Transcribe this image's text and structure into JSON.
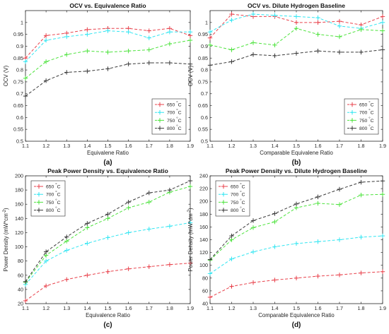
{
  "chart_data": [
    {
      "type": "line",
      "panel_label": "(a)",
      "title": "OCV vs. Equivalence Ratio",
      "xlabel": "Equivalene Ratio",
      "ylabel": "OCV (V)",
      "xlim": [
        1.1,
        1.9
      ],
      "ylim": [
        0.5,
        1.05
      ],
      "xticks": [
        "1.1",
        "1.2",
        "1.3",
        "1.4",
        "1.5",
        "1.6",
        "1.7",
        "1.8",
        "1.9"
      ],
      "yticks": [
        "0.5",
        "0.55",
        "0.6",
        "0.65",
        "0.7",
        "0.75",
        "0.8",
        "0.85",
        "0.9",
        "0.95",
        "1"
      ],
      "legend_position": "bottom-right",
      "x": [
        1.1,
        1.2,
        1.3,
        1.4,
        1.5,
        1.6,
        1.7,
        1.8,
        1.9
      ],
      "series": [
        {
          "name": "650 °C",
          "color": "#e8414b",
          "values": [
            0.85,
            0.945,
            0.955,
            0.97,
            0.975,
            0.975,
            0.965,
            0.975,
            0.945
          ]
        },
        {
          "name": "700 °C",
          "color": "#33e6f2",
          "values": [
            0.835,
            0.925,
            0.94,
            0.95,
            0.965,
            0.96,
            0.935,
            0.96,
            0.96
          ]
        },
        {
          "name": "750 °C",
          "color": "#4ee33e",
          "values": [
            0.765,
            0.835,
            0.865,
            0.88,
            0.875,
            0.88,
            0.885,
            0.91,
            0.925
          ]
        },
        {
          "name": "800 °C",
          "color": "#3a3a3a",
          "values": [
            0.69,
            0.755,
            0.79,
            0.795,
            0.805,
            0.825,
            0.83,
            0.83,
            0.825
          ]
        }
      ]
    },
    {
      "type": "line",
      "panel_label": "(b)",
      "title": "OCV vs. Dilute Hydrogen Baseline",
      "xlabel": "Comparable Equivalene Ratio",
      "ylabel": "OCV (V)",
      "xlim": [
        1.1,
        1.9
      ],
      "ylim": [
        0.5,
        1.05
      ],
      "xticks": [
        "1.1",
        "1.2",
        "1.3",
        "1.4",
        "1.5",
        "1.6",
        "1.7",
        "1.8",
        "1.9"
      ],
      "yticks": [
        "0.5",
        "0.55",
        "0.6",
        "0.65",
        "0.7",
        "0.75",
        "0.8",
        "0.85",
        "0.9",
        "0.95",
        "1"
      ],
      "legend_position": "bottom-right",
      "x": [
        1.1,
        1.2,
        1.3,
        1.4,
        1.5,
        1.6,
        1.7,
        1.8,
        1.9
      ],
      "series": [
        {
          "name": "650 °C",
          "color": "#e8414b",
          "values": [
            0.935,
            1.035,
            1.025,
            1.025,
            1.0,
            1.0,
            1.005,
            0.99,
            1.025
          ]
        },
        {
          "name": "700 °C",
          "color": "#33e6f2",
          "values": [
            0.96,
            1.01,
            1.035,
            1.03,
            1.025,
            1.02,
            0.985,
            0.975,
            1.0
          ]
        },
        {
          "name": "750 °C",
          "color": "#4ee33e",
          "values": [
            0.905,
            0.885,
            0.915,
            0.905,
            0.975,
            0.95,
            0.94,
            0.97,
            0.965
          ]
        },
        {
          "name": "800 °C",
          "color": "#3a3a3a",
          "values": [
            0.82,
            0.835,
            0.865,
            0.86,
            0.87,
            0.88,
            0.875,
            0.875,
            0.885
          ]
        }
      ]
    },
    {
      "type": "line",
      "panel_label": "(c)",
      "title": "Peak Power Density vs. Equivalence Ratio",
      "xlabel": "Equivalence Ratio",
      "ylabel": "Power Density (mW*cm⁻²)",
      "xlim": [
        1.1,
        1.9
      ],
      "ylim": [
        20,
        200
      ],
      "xticks": [
        "1.1",
        "1.2",
        "1.3",
        "1.4",
        "1.5",
        "1.6",
        "1.7",
        "1.8",
        "1.9"
      ],
      "yticks": [
        "20",
        "40",
        "60",
        "80",
        "100",
        "120",
        "140",
        "160",
        "180",
        "200"
      ],
      "legend_position": "top-left",
      "x": [
        1.1,
        1.2,
        1.3,
        1.4,
        1.5,
        1.6,
        1.7,
        1.8,
        1.9
      ],
      "series": [
        {
          "name": "650 °C",
          "color": "#e8414b",
          "values": [
            24,
            45,
            54,
            60,
            65,
            69,
            72,
            75,
            77
          ]
        },
        {
          "name": "700 °C",
          "color": "#33e6f2",
          "values": [
            47,
            80,
            95,
            105,
            113,
            120,
            125,
            129,
            134
          ]
        },
        {
          "name": "750 °C",
          "color": "#4ee33e",
          "values": [
            50,
            88,
            108,
            127,
            140,
            155,
            163,
            177,
            185
          ]
        },
        {
          "name": "800 °C",
          "color": "#3a3a3a",
          "values": [
            51,
            93,
            114,
            133,
            146,
            163,
            176,
            180,
            193
          ]
        }
      ]
    },
    {
      "type": "line",
      "panel_label": "(d)",
      "title": "Peak Power Density vs. Dilute Hydrogen Baseline",
      "xlabel": "Comparable Equivalence Ratio",
      "ylabel": "Power Density (mW*cm⁻²)",
      "xlim": [
        1.1,
        1.9
      ],
      "ylim": [
        40,
        240
      ],
      "xticks": [
        "1.1",
        "1.2",
        "1.3",
        "1.4",
        "1.5",
        "1.6",
        "1.7",
        "1.8",
        "1.9"
      ],
      "yticks": [
        "40",
        "60",
        "80",
        "100",
        "120",
        "140",
        "160",
        "180",
        "200",
        "220",
        "240"
      ],
      "legend_position": "top-left",
      "x": [
        1.1,
        1.2,
        1.3,
        1.4,
        1.5,
        1.6,
        1.7,
        1.8,
        1.9
      ],
      "series": [
        {
          "name": "650 °C",
          "color": "#e8414b",
          "values": [
            50,
            67,
            73,
            77,
            80,
            83,
            85,
            88,
            90
          ]
        },
        {
          "name": "700 °C",
          "color": "#33e6f2",
          "values": [
            87,
            110,
            121,
            129,
            134,
            137,
            140,
            144,
            146
          ]
        },
        {
          "name": "750 °C",
          "color": "#4ee33e",
          "values": [
            108,
            140,
            159,
            168,
            190,
            197,
            195,
            210,
            211
          ]
        },
        {
          "name": "800 °C",
          "color": "#3a3a3a",
          "values": [
            109,
            146,
            170,
            181,
            196,
            207,
            219,
            230,
            232
          ]
        }
      ]
    }
  ]
}
